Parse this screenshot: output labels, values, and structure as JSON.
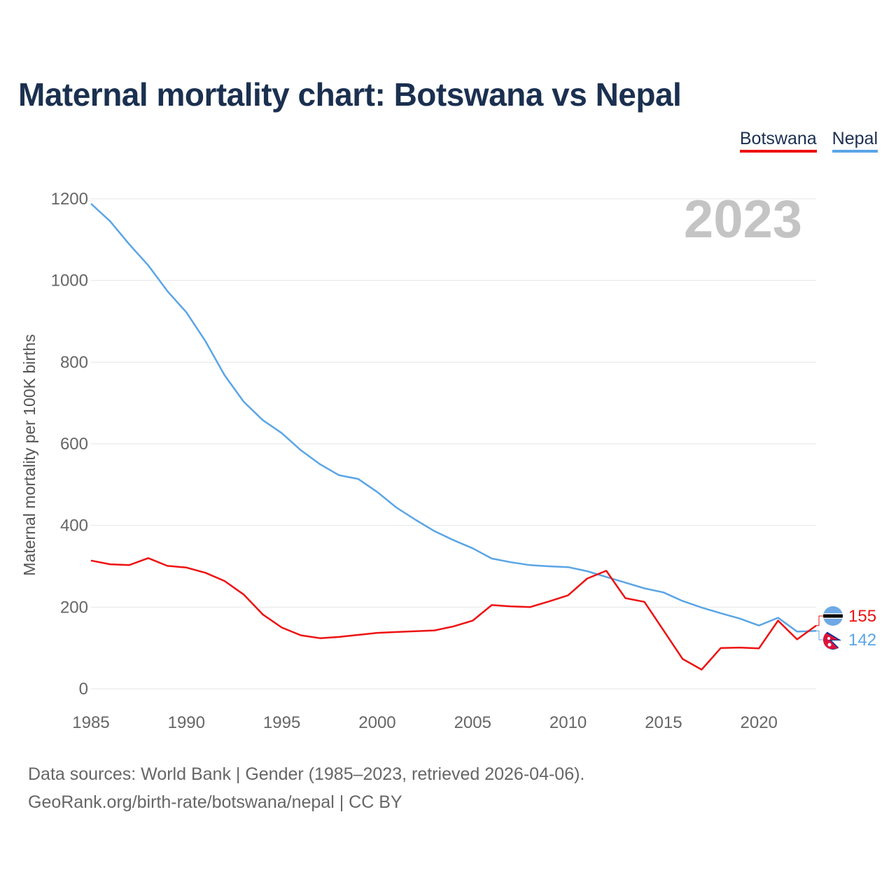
{
  "header": {
    "title": "Maternal mortality chart: Botswana vs Nepal",
    "year": "2023"
  },
  "footer": {
    "line1": "Data sources: World Bank | Gender (1985–2023, retrieved 2026-04-06).",
    "line2": "GeoRank.org/birth-rate/botswana/nepal | CC BY"
  },
  "colors": {
    "botswana": "#ee1111",
    "nepal": "#5aa5e6",
    "grid": "#e6e6e6",
    "title": "#1b3050"
  },
  "chart_data": {
    "type": "line",
    "title": "Maternal mortality chart: Botswana vs Nepal",
    "xlabel": "",
    "ylabel": "Maternal mortality per 100K births",
    "xlim": [
      1985,
      2023
    ],
    "ylim": [
      0,
      1200
    ],
    "xticks": [
      1985,
      1990,
      1995,
      2000,
      2005,
      2010,
      2015,
      2020
    ],
    "yticks": [
      0,
      200,
      400,
      600,
      800,
      1000,
      1200
    ],
    "grid": true,
    "legend_position": "top-right",
    "x": [
      1985,
      1986,
      1987,
      1988,
      1989,
      1990,
      1991,
      1992,
      1993,
      1994,
      1995,
      1996,
      1997,
      1998,
      1999,
      2000,
      2001,
      2002,
      2003,
      2004,
      2005,
      2006,
      2007,
      2008,
      2009,
      2010,
      2011,
      2012,
      2013,
      2014,
      2015,
      2016,
      2017,
      2018,
      2019,
      2020,
      2021,
      2022,
      2023
    ],
    "series": [
      {
        "name": "Botswana",
        "color": "#ee1111",
        "end_label": "155",
        "values": [
          314,
          305,
          303,
          320,
          301,
          297,
          284,
          264,
          231,
          182,
          150,
          131,
          124,
          127,
          132,
          137,
          139,
          141,
          143,
          153,
          167,
          205,
          202,
          200,
          214,
          229,
          270,
          289,
          222,
          213,
          143,
          73,
          47,
          100,
          101,
          99,
          167,
          121,
          155
        ]
      },
      {
        "name": "Nepal",
        "color": "#5aa5e6",
        "end_label": "142",
        "values": [
          1188,
          1145,
          1089,
          1037,
          974,
          922,
          851,
          768,
          703,
          658,
          626,
          584,
          550,
          523,
          514,
          482,
          444,
          414,
          386,
          364,
          344,
          319,
          310,
          303,
          300,
          298,
          288,
          274,
          260,
          246,
          236,
          215,
          199,
          185,
          172,
          155,
          174,
          140,
          142
        ]
      }
    ]
  }
}
